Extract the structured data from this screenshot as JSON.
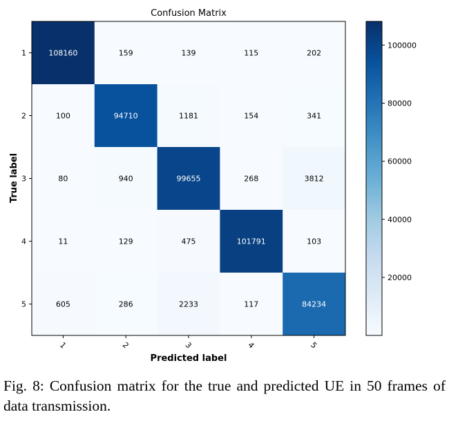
{
  "chart_data": {
    "type": "heatmap",
    "title": "Confusion Matrix",
    "xlabel": "Predicted label",
    "ylabel": "True label",
    "x_tick_labels": [
      "1",
      "2",
      "3",
      "4",
      "5"
    ],
    "y_tick_labels": [
      "1",
      "2",
      "3",
      "4",
      "5"
    ],
    "values": [
      [
        108160,
        159,
        139,
        115,
        202
      ],
      [
        100,
        94710,
        1181,
        154,
        341
      ],
      [
        80,
        940,
        99655,
        268,
        3812
      ],
      [
        11,
        129,
        475,
        101791,
        103
      ],
      [
        605,
        286,
        2233,
        117,
        84234
      ]
    ],
    "colormap": "Blues",
    "color_min": "#f7fbff",
    "color_max": "#08306b",
    "colorbar": {
      "range": [
        11,
        108160
      ],
      "ticks": [
        20000,
        40000,
        60000,
        80000,
        100000
      ],
      "tick_labels": [
        "20000",
        "40000",
        "60000",
        "80000",
        "100000"
      ]
    },
    "x_tick_rotation": "45"
  },
  "caption": "Fig. 8: Confusion matrix for the true and predicted UE in 50 frames of data transmission."
}
